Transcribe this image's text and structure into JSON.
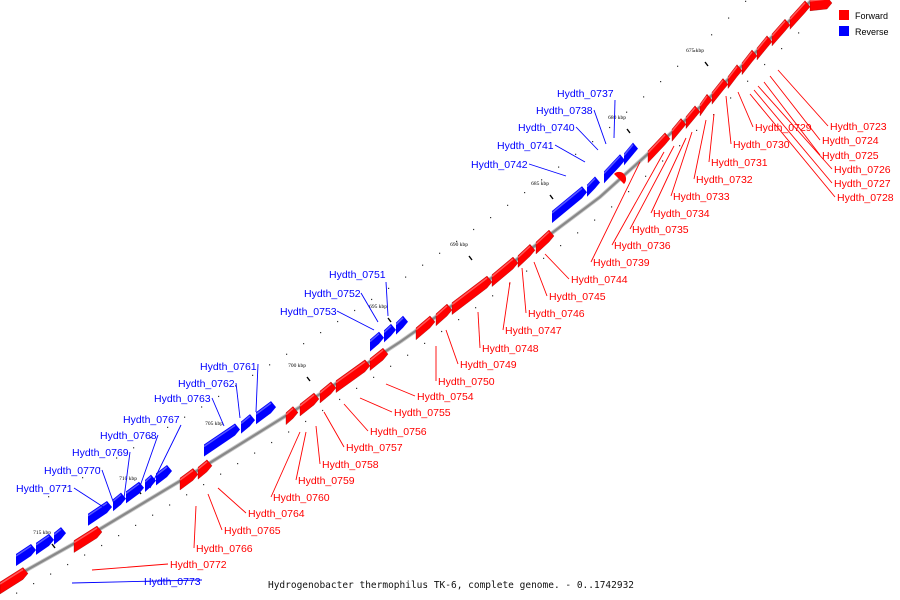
{
  "caption": "Hydrogenobacter thermophilus TK-6, complete genome. - 0..1742932",
  "legend": [
    {
      "label": "Forward",
      "color": "#ff0000"
    },
    {
      "label": "Reverse",
      "color": "#0000ff"
    }
  ],
  "colors": {
    "forward": "#ff0000",
    "reverse": "#0000ff",
    "backbone": "#888888"
  },
  "ticks": [
    "675 kbp",
    "680 kbp",
    "685 kbp",
    "690 kbp",
    "695 kbp",
    "700 kbp",
    "705 kbp",
    "710 kbp",
    "715 kbp"
  ],
  "reverse_labels": [
    "Hydth_0737",
    "Hydth_0738",
    "Hydth_0740",
    "Hydth_0741",
    "Hydth_0742",
    "Hydth_0751",
    "Hydth_0752",
    "Hydth_0753",
    "Hydth_0761",
    "Hydth_0762",
    "Hydth_0763",
    "Hydth_0767",
    "Hydth_0768",
    "Hydth_0769",
    "Hydth_0770",
    "Hydth_0771",
    "Hydth_0773"
  ],
  "forward_labels": [
    "Hydth_0723",
    "Hydth_0724",
    "Hydth_0725",
    "Hydth_0726",
    "Hydth_0727",
    "Hydth_0728",
    "Hydth_0729",
    "Hydth_0730",
    "Hydth_0731",
    "Hydth_0732",
    "Hydth_0733",
    "Hydth_0734",
    "Hydth_0735",
    "Hydth_0736",
    "Hydth_0739",
    "Hydth_0744",
    "Hydth_0745",
    "Hydth_0746",
    "Hydth_0747",
    "Hydth_0748",
    "Hydth_0749",
    "Hydth_0750",
    "Hydth_0754",
    "Hydth_0755",
    "Hydth_0756",
    "Hydth_0757",
    "Hydth_0758",
    "Hydth_0759",
    "Hydth_0760",
    "Hydth_0764",
    "Hydth_0765",
    "Hydth_0766",
    "Hydth_0772"
  ]
}
